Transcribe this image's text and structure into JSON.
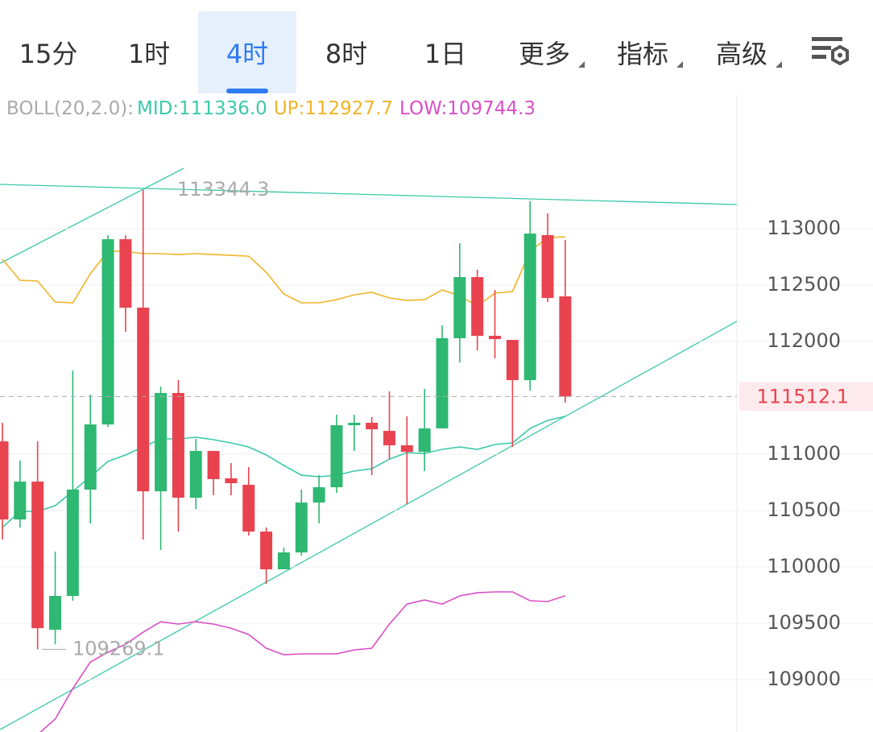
{
  "tabs": [
    "15分",
    "1时",
    "4时",
    "8时",
    "1日",
    "更多",
    "指标",
    "高级"
  ],
  "selected_tab": 2,
  "chart_data": {
    "type": "candlestick",
    "indicator": "BOLL(20,2.0):",
    "open": [
      111114,
      110421,
      110757,
      109443,
      109743,
      110686,
      111264,
      112907,
      112300,
      110671,
      111543,
      110614,
      111029,
      110786,
      110729,
      110314,
      109979,
      110129,
      110571,
      110707,
      111257,
      111279,
      111207,
      111079,
      111021,
      111229,
      112029,
      112571,
      112050,
      112014,
      111657,
      112943,
      112400
    ],
    "high": [
      111279,
      110943,
      111114,
      110136,
      111743,
      111529,
      112943,
      112943,
      113344.3,
      111600,
      111657,
      111136,
      111029,
      110921,
      110886,
      110350,
      110171,
      110686,
      110814,
      111350,
      111350,
      111329,
      111557,
      111336,
      111579,
      112143,
      112871,
      112636,
      112457,
      112014,
      113243,
      113136,
      112900
    ],
    "low": [
      110243,
      110350,
      109269.1,
      109314,
      109700,
      110386,
      111243,
      112086,
      110243,
      110150,
      110314,
      110514,
      110636,
      110636,
      110279,
      109850,
      109979,
      110100,
      110386,
      110657,
      111029,
      110814,
      110957,
      110557,
      110850,
      111229,
      111814,
      111921,
      111850,
      111064,
      111564,
      112350,
      111457
    ],
    "close": [
      110421,
      110757,
      109457,
      109743,
      110686,
      111264,
      112907,
      112300,
      110671,
      111543,
      110614,
      111029,
      110779,
      110743,
      110314,
      109979,
      110129,
      110571,
      110707,
      111257,
      111279,
      111221,
      111079,
      111021,
      111229,
      112029,
      112571,
      112050,
      112021,
      111657,
      112957,
      112386,
      111512.1
    ],
    "up_color": "#2eb872",
    "down_color": "#e8434f",
    "bands": [
      {
        "label": "MID:111336.0",
        "color": "#3cc9aa",
        "values": [
          110350,
          110493,
          110493,
          110543,
          110671,
          110800,
          110936,
          110993,
          111064,
          111136,
          111136,
          111150,
          111129,
          111100,
          111064,
          110993,
          110900,
          110814,
          110800,
          110814,
          110850,
          110871,
          110957,
          111014,
          111007,
          111043,
          111064,
          111043,
          111086,
          111100,
          111229,
          111300,
          111336
        ]
      },
      {
        "label": "UP:112927.7",
        "color": "#f0b429",
        "values": [
          112729,
          112543,
          112536,
          112350,
          112343,
          112600,
          112800,
          112800,
          112779,
          112779,
          112771,
          112779,
          112771,
          112764,
          112757,
          112614,
          112421,
          112343,
          112343,
          112371,
          112414,
          112436,
          112386,
          112364,
          112371,
          112457,
          112407,
          112314,
          112429,
          112443,
          112800,
          112921,
          112927.7
        ]
      },
      {
        "label": "LOW:109744.3",
        "color": "#d94fc6",
        "values": [
          null,
          null,
          108514,
          108650,
          108921,
          109157,
          109243,
          109314,
          109421,
          109514,
          109493,
          109514,
          109493,
          109457,
          109400,
          109279,
          109221,
          109229,
          109229,
          109229,
          109264,
          109279,
          109493,
          109671,
          109707,
          109671,
          109743,
          109771,
          109779,
          109779,
          109700,
          109693,
          109744.3
        ]
      }
    ],
    "ylim": [
      108536,
      114186
    ],
    "yticks": [
      109000,
      109500,
      110000,
      110500,
      111000,
      112000,
      112500,
      113000
    ],
    "last_price": 111512.1,
    "max_label": 113344.3,
    "min_label": 109269.1
  }
}
